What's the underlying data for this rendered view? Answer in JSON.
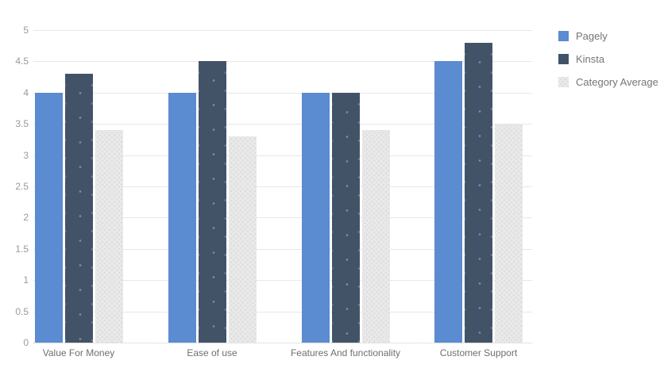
{
  "chart_data": {
    "type": "bar",
    "title": "",
    "categories": [
      "Value For Money",
      "Ease of use",
      "Features And functionality",
      "Customer Support"
    ],
    "series": [
      {
        "name": "Pagely",
        "color": "#5b8bd0",
        "texture": "none",
        "values": [
          4.0,
          4.0,
          4.0,
          4.5
        ]
      },
      {
        "name": "Kinsta",
        "color": "#425368",
        "texture": "sparse-dots",
        "values": [
          4.3,
          4.5,
          4.0,
          4.8
        ]
      },
      {
        "name": "Category Average",
        "color": "#e9e9e9",
        "texture": "fine-dots",
        "values": [
          3.4,
          3.3,
          3.4,
          3.5
        ]
      }
    ],
    "xlabel": "",
    "ylabel": "",
    "ylim": [
      0,
      5
    ],
    "ytick_step": 0.5,
    "ytick_labels": [
      "0",
      "0.5",
      "1",
      "1.5",
      "2",
      "2.5",
      "3",
      "3.5",
      "4",
      "4.5",
      "5"
    ],
    "grid": true,
    "legend_position": "right"
  },
  "colors": {
    "background": "#ffffff",
    "gridline": "#e7e7e7",
    "baseline": "#c9c9c9",
    "axis_tick_text": "#9a9a9a",
    "category_text": "#6f6f6f",
    "legend_text": "#757575"
  }
}
